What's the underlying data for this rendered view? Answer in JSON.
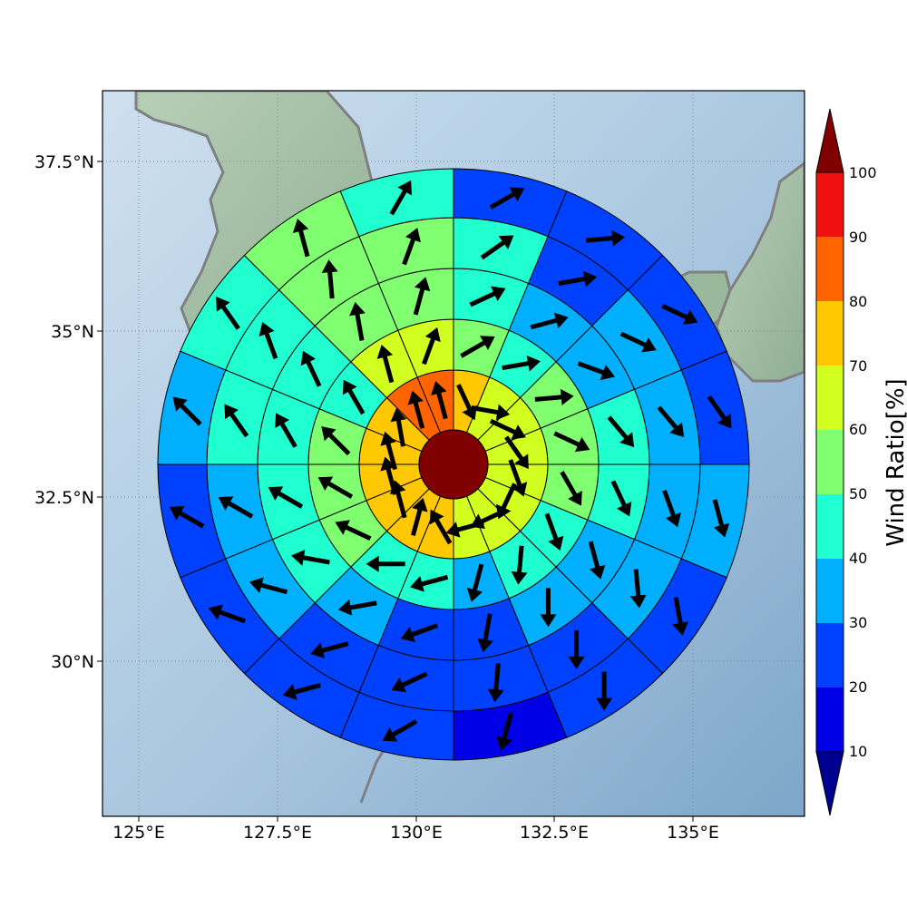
{
  "map": {
    "longitude_ticks": [
      "125°E",
      "127.5°E",
      "130°E",
      "132.5°E",
      "135°E"
    ],
    "latitude_ticks": [
      "37.5°N",
      "35°N",
      "32.5°N",
      "30°N"
    ]
  },
  "colorbar": {
    "title": "Wind Ratio[%]",
    "tick_labels": [
      "10",
      "20",
      "30",
      "40",
      "50",
      "60",
      "70",
      "80",
      "90",
      "100"
    ],
    "colors": [
      "#0000e6",
      "#0040ff",
      "#00b0ff",
      "#20ffd0",
      "#80ff70",
      "#d0ff20",
      "#ffc800",
      "#ff6400",
      "#f01010"
    ],
    "under_color": "#000090",
    "over_color": "#800000",
    "levels": [
      10,
      20,
      30,
      40,
      50,
      60,
      70,
      80,
      90,
      100
    ]
  },
  "chart_data": {
    "type": "heatmap",
    "description_of_grid": "polar storm-relative grid, 5 rings x 16 sectors (sector 0 starts at north, clockwise)",
    "center_value": 100,
    "rings": [
      {
        "values": [
          75,
          65,
          65,
          65,
          65,
          65,
          65,
          65,
          75,
          75,
          75,
          75,
          75,
          75,
          80,
          80
        ]
      },
      {
        "values": [
          55,
          45,
          55,
          55,
          55,
          45,
          45,
          35,
          45,
          45,
          55,
          55,
          55,
          45,
          65,
          65
        ]
      },
      {
        "values": [
          45,
          35,
          35,
          45,
          45,
          35,
          35,
          25,
          25,
          35,
          45,
          45,
          45,
          45,
          55,
          55
        ]
      },
      {
        "values": [
          45,
          25,
          35,
          35,
          35,
          35,
          25,
          25,
          25,
          25,
          35,
          35,
          45,
          45,
          55,
          55
        ]
      },
      {
        "values": [
          25,
          25,
          25,
          25,
          35,
          25,
          25,
          15,
          25,
          25,
          25,
          25,
          35,
          45,
          55,
          45
        ]
      }
    ],
    "arrows": [
      {
        "ring": 0,
        "directions": [
          155,
          100,
          115,
          145,
          160,
          205,
          245,
          255,
          330,
          15,
          345,
          345,
          345,
          350,
          345,
          345
        ]
      },
      {
        "ring": 1,
        "directions": [
          60,
          80,
          85,
          115,
          150,
          160,
          185,
          195,
          255,
          270,
          295,
          300,
          315,
          330,
          345,
          20
        ]
      },
      {
        "ring": 2,
        "directions": [
          65,
          75,
          110,
          140,
          155,
          165,
          180,
          190,
          250,
          260,
          280,
          300,
          330,
          335,
          350,
          15
        ]
      },
      {
        "ring": 3,
        "directions": [
          55,
          80,
          115,
          140,
          160,
          175,
          180,
          185,
          245,
          255,
          285,
          300,
          325,
          340,
          355,
          20
        ]
      },
      {
        "ring": 4,
        "directions": [
          60,
          85,
          115,
          145,
          165,
          170,
          180,
          195,
          240,
          255,
          290,
          300,
          315,
          325,
          345,
          30
        ]
      }
    ]
  }
}
